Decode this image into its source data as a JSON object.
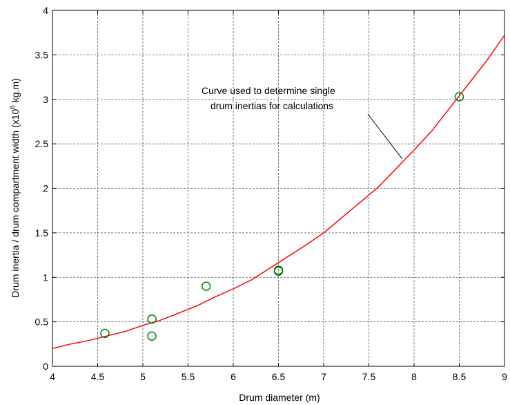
{
  "chart_data": {
    "type": "line",
    "title": "",
    "xlabel": "Drum diameter (m)",
    "ylabel_main": "Drum inertia / drum compartment width (x10",
    "ylabel_sup": "6",
    "ylabel_tail": " kg.m)",
    "xlim": [
      4,
      9
    ],
    "ylim": [
      0,
      4
    ],
    "xticks": [
      4,
      4.5,
      5,
      5.5,
      6,
      6.5,
      7,
      7.5,
      8,
      8.5,
      9
    ],
    "yticks": [
      0,
      0.5,
      1,
      1.5,
      2,
      2.5,
      3,
      3.5,
      4
    ],
    "grid": true,
    "series": [
      {
        "kind": "line",
        "color": "#ff0000",
        "x": [
          4.0,
          4.2,
          4.4,
          4.6,
          4.8,
          5.0,
          5.2,
          5.4,
          5.6,
          5.8,
          6.0,
          6.2,
          6.4,
          6.6,
          6.8,
          7.0,
          7.2,
          7.4,
          7.6,
          7.8,
          8.0,
          8.2,
          8.4,
          8.6,
          8.8,
          9.0
        ],
        "y": [
          0.2,
          0.25,
          0.29,
          0.34,
          0.39,
          0.46,
          0.52,
          0.6,
          0.68,
          0.78,
          0.87,
          0.97,
          1.1,
          1.23,
          1.36,
          1.5,
          1.67,
          1.84,
          2.01,
          2.22,
          2.43,
          2.65,
          2.91,
          3.17,
          3.43,
          3.72
        ]
      },
      {
        "kind": "scatter",
        "color": "#008000",
        "x": [
          4.58,
          5.1,
          5.1,
          5.7,
          6.5,
          6.5,
          8.5
        ],
        "y": [
          0.37,
          0.53,
          0.34,
          0.9,
          1.08,
          1.07,
          3.03
        ]
      }
    ],
    "annotation": {
      "lines": [
        "Curve used to determine single",
        "drum inertias for calculations"
      ],
      "pointer_to": [
        7.87,
        2.33
      ]
    }
  }
}
